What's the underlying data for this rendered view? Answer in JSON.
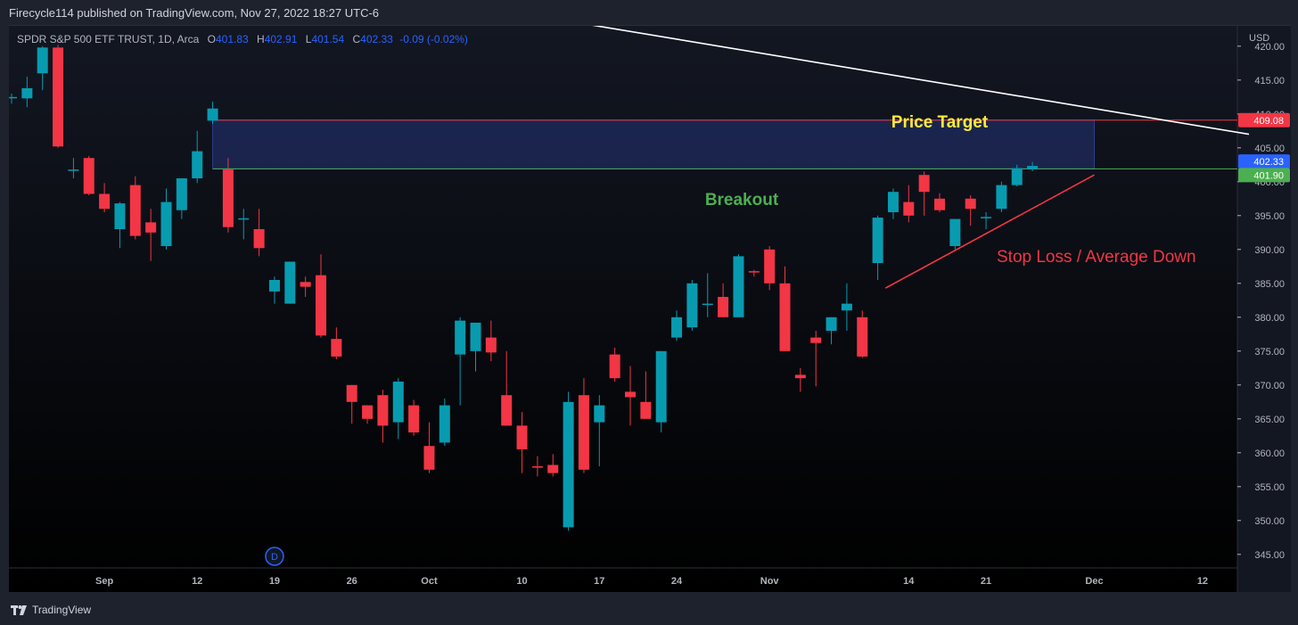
{
  "header": {
    "published": "Firecycle114 published on TradingView.com, Nov 27, 2022 18:27 UTC-6"
  },
  "legend": {
    "symbol": "SPDR S&P 500 ETF TRUST, 1D, Arca",
    "o_label": "O",
    "o_value": "401.83",
    "h_label": "H",
    "h_value": "402.91",
    "l_label": "L",
    "l_value": "401.54",
    "c_label": "C",
    "c_value": "402.33",
    "change": "-0.09 (-0.02%)"
  },
  "footer": {
    "brand": "TradingView",
    "logo_icon": "tradingview-logo-icon"
  },
  "chart_data": {
    "type": "candlestick",
    "currency": "USD",
    "ylim": [
      343,
      423
    ],
    "y_ticks": [
      "345.00",
      "350.00",
      "355.00",
      "360.00",
      "365.00",
      "370.00",
      "375.00",
      "380.00",
      "385.00",
      "390.00",
      "395.00",
      "400.00",
      "405.00",
      "410.00",
      "415.00",
      "420.00"
    ],
    "x_ticks": [
      {
        "label": "Sep",
        "slot": 6
      },
      {
        "label": "12",
        "slot": 12
      },
      {
        "label": "19",
        "slot": 17
      },
      {
        "label": "26",
        "slot": 22
      },
      {
        "label": "Oct",
        "slot": 27
      },
      {
        "label": "10",
        "slot": 33
      },
      {
        "label": "17",
        "slot": 38
      },
      {
        "label": "24",
        "slot": 43
      },
      {
        "label": "Nov",
        "slot": 49
      },
      {
        "label": "14",
        "slot": 58
      },
      {
        "label": "21",
        "slot": 63
      },
      {
        "label": "Dec",
        "slot": 70
      },
      {
        "label": "12",
        "slot": 77
      }
    ],
    "up_color": "#089bb0",
    "down_color": "#f23645",
    "candles": [
      {
        "o": 412.5,
        "h": 413.0,
        "l": 411.5,
        "c": 412.5
      },
      {
        "o": 412.3,
        "h": 415.5,
        "l": 411.0,
        "c": 413.8
      },
      {
        "o": 416.0,
        "h": 420.0,
        "l": 413.5,
        "c": 419.8
      },
      {
        "o": 419.8,
        "h": 420.2,
        "l": 405.0,
        "c": 405.2
      },
      {
        "o": 401.7,
        "h": 403.5,
        "l": 400.5,
        "c": 401.8
      },
      {
        "o": 403.5,
        "h": 403.8,
        "l": 398.0,
        "c": 398.2
      },
      {
        "o": 398.2,
        "h": 399.8,
        "l": 395.5,
        "c": 396.0
      },
      {
        "o": 393.0,
        "h": 397.0,
        "l": 390.2,
        "c": 396.8
      },
      {
        "o": 399.5,
        "h": 400.8,
        "l": 391.5,
        "c": 392.0
      },
      {
        "o": 394.0,
        "h": 396.0,
        "l": 388.3,
        "c": 392.5
      },
      {
        "o": 390.5,
        "h": 399.0,
        "l": 390.0,
        "c": 397.0
      },
      {
        "o": 395.8,
        "h": 400.0,
        "l": 394.5,
        "c": 400.5
      },
      {
        "o": 400.5,
        "h": 407.5,
        "l": 399.8,
        "c": 404.5
      },
      {
        "o": 409.0,
        "h": 411.8,
        "l": 408.5,
        "c": 410.8
      },
      {
        "o": 401.8,
        "h": 403.5,
        "l": 392.5,
        "c": 393.3
      },
      {
        "o": 394.5,
        "h": 396.0,
        "l": 391.5,
        "c": 394.6
      },
      {
        "o": 393.0,
        "h": 396.0,
        "l": 389.0,
        "c": 390.2
      },
      {
        "o": 383.8,
        "h": 386.0,
        "l": 382.0,
        "c": 385.5
      },
      {
        "o": 382.0,
        "h": 388.0,
        "l": 382.0,
        "c": 388.2
      },
      {
        "o": 385.2,
        "h": 386.0,
        "l": 383.0,
        "c": 384.5
      },
      {
        "o": 386.2,
        "h": 389.3,
        "l": 377.0,
        "c": 377.3
      },
      {
        "o": 376.8,
        "h": 378.5,
        "l": 373.8,
        "c": 374.2
      },
      {
        "o": 370.0,
        "h": 370.0,
        "l": 364.3,
        "c": 367.5
      },
      {
        "o": 367.0,
        "h": 367.0,
        "l": 364.3,
        "c": 365.0
      },
      {
        "o": 368.5,
        "h": 369.3,
        "l": 361.5,
        "c": 364.0
      },
      {
        "o": 364.5,
        "h": 371.0,
        "l": 362.0,
        "c": 370.5
      },
      {
        "o": 367.0,
        "h": 367.8,
        "l": 362.5,
        "c": 363.0
      },
      {
        "o": 361.0,
        "h": 364.5,
        "l": 357.0,
        "c": 357.5
      },
      {
        "o": 361.5,
        "h": 368.0,
        "l": 361.0,
        "c": 367.0
      },
      {
        "o": 374.5,
        "h": 380.0,
        "l": 367.0,
        "c": 379.5
      },
      {
        "o": 375.0,
        "h": 378.5,
        "l": 372.0,
        "c": 379.2
      },
      {
        "o": 377.0,
        "h": 379.5,
        "l": 373.5,
        "c": 374.8
      },
      {
        "o": 368.5,
        "h": 375.0,
        "l": 364.5,
        "c": 364.0
      },
      {
        "o": 364.0,
        "h": 366.0,
        "l": 357.0,
        "c": 360.5
      },
      {
        "o": 358.0,
        "h": 359.5,
        "l": 356.5,
        "c": 357.8
      },
      {
        "o": 358.2,
        "h": 359.8,
        "l": 356.5,
        "c": 357.0
      },
      {
        "o": 349.0,
        "h": 369.0,
        "l": 348.5,
        "c": 367.5
      },
      {
        "o": 368.5,
        "h": 371.0,
        "l": 357.0,
        "c": 357.5
      },
      {
        "o": 364.5,
        "h": 368.5,
        "l": 358.0,
        "c": 367.0
      },
      {
        "o": 374.5,
        "h": 375.5,
        "l": 370.5,
        "c": 371.0
      },
      {
        "o": 369.0,
        "h": 372.8,
        "l": 364.0,
        "c": 368.2
      },
      {
        "o": 367.5,
        "h": 372.0,
        "l": 365.0,
        "c": 365.0
      },
      {
        "o": 364.5,
        "h": 375.0,
        "l": 363.0,
        "c": 375.0
      },
      {
        "o": 377.0,
        "h": 381.0,
        "l": 376.5,
        "c": 380.0
      },
      {
        "o": 378.5,
        "h": 385.5,
        "l": 378.0,
        "c": 385.0
      },
      {
        "o": 381.8,
        "h": 386.5,
        "l": 380.0,
        "c": 382.0
      },
      {
        "o": 383.0,
        "h": 385.0,
        "l": 380.0,
        "c": 380.0
      },
      {
        "o": 380.0,
        "h": 389.3,
        "l": 380.0,
        "c": 389.0
      },
      {
        "o": 386.8,
        "h": 387.0,
        "l": 386.0,
        "c": 386.6
      },
      {
        "o": 390.0,
        "h": 390.5,
        "l": 384.0,
        "c": 385.0
      },
      {
        "o": 385.0,
        "h": 387.5,
        "l": 375.0,
        "c": 375.0
      },
      {
        "o": 371.5,
        "h": 372.5,
        "l": 369.0,
        "c": 371.0
      },
      {
        "o": 377.0,
        "h": 378.0,
        "l": 369.8,
        "c": 376.2
      },
      {
        "o": 378.0,
        "h": 380.0,
        "l": 376.0,
        "c": 380.0
      },
      {
        "o": 381.0,
        "h": 385.0,
        "l": 378.0,
        "c": 382.0
      },
      {
        "o": 380.0,
        "h": 381.0,
        "l": 374.0,
        "c": 374.2
      },
      {
        "o": 388.0,
        "h": 395.0,
        "l": 385.5,
        "c": 394.7
      },
      {
        "o": 395.5,
        "h": 399.0,
        "l": 394.5,
        "c": 398.5
      },
      {
        "o": 397.0,
        "h": 399.5,
        "l": 394.0,
        "c": 395.0
      },
      {
        "o": 401.0,
        "h": 401.5,
        "l": 395.0,
        "c": 398.5
      },
      {
        "o": 397.5,
        "h": 398.3,
        "l": 395.5,
        "c": 395.8
      },
      {
        "o": 390.5,
        "h": 394.0,
        "l": 390.0,
        "c": 394.5
      },
      {
        "o": 397.5,
        "h": 398.0,
        "l": 393.5,
        "c": 396.0
      },
      {
        "o": 394.6,
        "h": 395.5,
        "l": 393.0,
        "c": 394.8
      },
      {
        "o": 396.0,
        "h": 400.0,
        "l": 395.5,
        "c": 399.5
      },
      {
        "o": 399.5,
        "h": 402.5,
        "l": 399.3,
        "c": 402.0
      },
      {
        "o": 401.83,
        "h": 402.91,
        "l": 401.54,
        "c": 402.33
      }
    ],
    "levels": [
      {
        "name": "price-target",
        "value": 409.08,
        "color": "#f23645",
        "label_bg": "#f23645"
      },
      {
        "name": "current-price",
        "value": 402.33,
        "color": "#2962ff",
        "label_bg": "#2962ff"
      },
      {
        "name": "breakout",
        "value": 401.9,
        "color": "#4caf50",
        "label_bg": "#4caf50"
      }
    ],
    "annotations": {
      "price_target": {
        "text": "Price Target",
        "color": "#ffeb3b"
      },
      "breakout": {
        "text": "Breakout",
        "color": "#4caf50"
      },
      "stop_loss": {
        "text": "Stop Loss / Average Down",
        "color": "#f23645"
      }
    },
    "zone": {
      "from_slot": 13,
      "to_slot": 70,
      "y1": 401.9,
      "y2": 409.08
    },
    "trendline_white": {
      "x1": 22,
      "y1": 429,
      "x2": 80,
      "y2": 407
    },
    "trendline_red": {
      "x1": 56.5,
      "y1": 384.3,
      "x2": 70,
      "y2": 401.0
    },
    "marker": {
      "text": "D",
      "slot": 17
    }
  }
}
